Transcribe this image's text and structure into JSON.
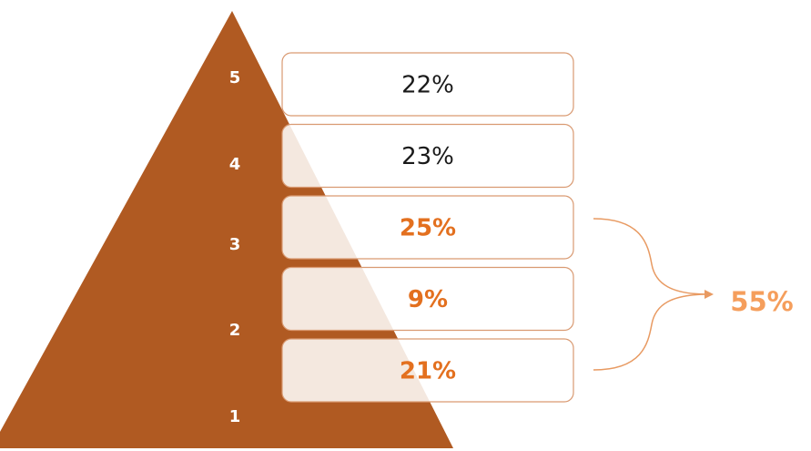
{
  "colors": {
    "pyramid": "#B05A22",
    "box_border": "#D99A72",
    "box_fill_overlay": "#FFFFFF",
    "text_dark": "#1A1A1A",
    "text_accent": "#E3701F",
    "total_accent": "#F59E5C",
    "brace": "#E89A62",
    "level_number": "#FFFFFF"
  },
  "levels": [
    {
      "number": "5",
      "percent": "22%",
      "highlighted": false
    },
    {
      "number": "4",
      "percent": "23%",
      "highlighted": false
    },
    {
      "number": "3",
      "percent": "25%",
      "highlighted": true
    },
    {
      "number": "2",
      "percent": "9%",
      "highlighted": true
    },
    {
      "number": "1",
      "percent": "21%",
      "highlighted": true
    }
  ],
  "total": {
    "label": "55%"
  }
}
